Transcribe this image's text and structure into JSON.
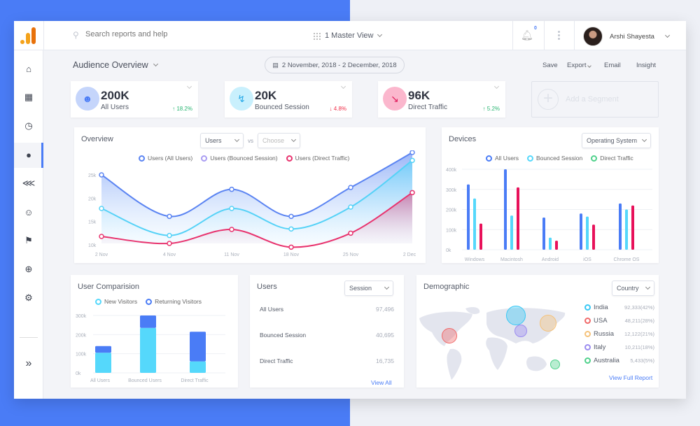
{
  "topbar": {
    "search_placeholder": "Search reports and help",
    "view": "1 Master View",
    "notifications": "0",
    "user_name": "Arshi Shayesta"
  },
  "header": {
    "title": "Audience Overview",
    "date_range": "2 November, 2018 - 2 December, 2018",
    "actions": [
      "Save",
      "Export",
      "Email",
      "Insight"
    ]
  },
  "sidebar": {
    "items": [
      "home-icon",
      "dashboard-add-icon",
      "clock-icon",
      "user-icon",
      "flow-icon",
      "smiley-icon",
      "flag-icon",
      "target-icon",
      "gear-icon",
      "expand-icon"
    ]
  },
  "kpis": [
    {
      "value": "200K",
      "label": "All Users",
      "change": "18.2%",
      "direction": "up",
      "color": "#c5d5fb",
      "icon_color": "#4a7cf6"
    },
    {
      "value": "20K",
      "label": "Bounced Session",
      "change": "4.8%",
      "direction": "down",
      "color": "#c9f0fd",
      "icon_color": "#27a9e8"
    },
    {
      "value": "96K",
      "label": "Direct Traffic",
      "change": "5.2%",
      "direction": "up",
      "color": "#fbb7cd",
      "icon_color": "#e0195a"
    }
  ],
  "add_segment": "Add a Segment",
  "overview": {
    "title": "Overview",
    "metric": "Users",
    "vs": "vs",
    "compare": "Choose"
  },
  "devices": {
    "title": "Devices",
    "filter": "Operating System"
  },
  "user_comparison": {
    "title": "User Comparision"
  },
  "users_panel": {
    "title": "Users",
    "filter": "Session",
    "rows": [
      {
        "label": "All Users",
        "value": "97,496"
      },
      {
        "label": "Bounced Session",
        "value": "40,695"
      },
      {
        "label": "Direct Traffic",
        "value": "16,735"
      }
    ],
    "link": "View All"
  },
  "demographic": {
    "title": "Demographic",
    "filter": "Country",
    "link": "View Full Report",
    "countries": [
      {
        "name": "India",
        "value": "92,333(42%)",
        "color": "#38c8f5"
      },
      {
        "name": "USA",
        "value": "48,211(28%)",
        "color": "#f06a6a"
      },
      {
        "name": "Russia",
        "value": "12,122(21%)",
        "color": "#f5c27a"
      },
      {
        "name": "Italy",
        "value": "10,211(18%)",
        "color": "#9b8cf0"
      },
      {
        "name": "Australia",
        "value": "5,433(5%)",
        "color": "#4fd18b"
      }
    ]
  },
  "chart_data": [
    {
      "type": "area",
      "title": "Overview",
      "categories": [
        "2 Nov",
        "4 Nov",
        "11 Nov",
        "18 Nov",
        "25 Nov",
        "2 Dec"
      ],
      "yticks": [
        "10k",
        "15k",
        "20k",
        "25k"
      ],
      "ylim": [
        10,
        30
      ],
      "series": [
        {
          "name": "Users (All Users)",
          "color": "#5b84f2",
          "values": [
            25,
            16.1,
            21.9,
            16.1,
            22.3,
            29.8
          ]
        },
        {
          "name": "Users (Bounced Session)",
          "color": "#55d2f7",
          "legend_color": "#a99cf2",
          "values": [
            17.8,
            12,
            17.8,
            13.4,
            18.1,
            28.1
          ]
        },
        {
          "name": "Users (Direct Traffic)",
          "color": "#e8336e",
          "values": [
            11.8,
            10.3,
            13.3,
            9.5,
            12.5,
            21.2
          ]
        }
      ]
    },
    {
      "type": "bar",
      "title": "Devices",
      "categories": [
        "Windows",
        "Macintosh",
        "Android",
        "iOS",
        "Chrome OS"
      ],
      "yticks": [
        "0k",
        "100k",
        "200k",
        "300k",
        "400k"
      ],
      "ylim": [
        0,
        400
      ],
      "series": [
        {
          "name": "All Users",
          "color": "#4a7cf6",
          "values": [
            325,
            400,
            160,
            180,
            230
          ]
        },
        {
          "name": "Bounced Session",
          "color": "#55d8fb",
          "values": [
            255,
            170,
            60,
            165,
            200
          ]
        },
        {
          "name": "Direct Traffic",
          "color": "#e8115a",
          "legend_color": "#4fd18b",
          "values": [
            130,
            310,
            45,
            125,
            220
          ]
        }
      ]
    },
    {
      "type": "bar",
      "stacked": true,
      "title": "User Comparision",
      "categories": [
        "All Users",
        "Bounced Users",
        "Direct Traffic"
      ],
      "yticks": [
        "0k",
        "100k",
        "200k",
        "300k"
      ],
      "ylim": [
        0,
        300
      ],
      "series": [
        {
          "name": "New Visitors",
          "color": "#55d8fb",
          "values": [
            105,
            235,
            60
          ]
        },
        {
          "name": "Returning Visitors",
          "color": "#4a7cf6",
          "values": [
            35,
            65,
            155
          ]
        }
      ]
    }
  ]
}
